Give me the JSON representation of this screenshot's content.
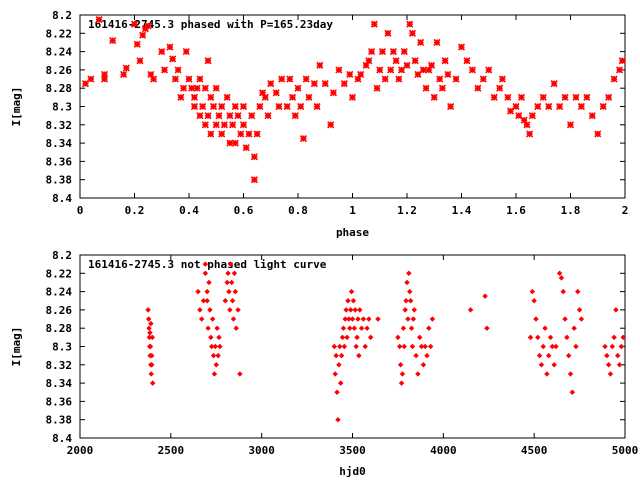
{
  "chart_data": [
    {
      "type": "scatter",
      "title": "161416-2745.3 phased with P=165.23day",
      "xlabel": "phase",
      "ylabel": "I[mag]",
      "xlim": [
        0,
        2
      ],
      "ylim": [
        8.2,
        8.4
      ],
      "y_inverted": true,
      "x_ticks": [
        0,
        0.2,
        0.4,
        0.6,
        0.8,
        1,
        1.2,
        1.4,
        1.6,
        1.8,
        2
      ],
      "x_tick_labels": [
        "0",
        "0.2",
        "0.4",
        "0.6",
        "0.8",
        "1",
        "1.2",
        "1.4",
        "1.6",
        "1.8",
        "2"
      ],
      "y_ticks": [
        8.2,
        8.22,
        8.24,
        8.26,
        8.28,
        8.3,
        8.32,
        8.34,
        8.36,
        8.38,
        8.4
      ],
      "y_tick_labels": [
        "8.2",
        "8.22",
        "8.24",
        "8.26",
        "8.28",
        "8.3",
        "8.32",
        "8.34",
        "8.36",
        "8.38",
        "8.4"
      ],
      "marker_color": "#ff0000",
      "marker": "star",
      "points": [
        [
          0.02,
          8.275
        ],
        [
          0.04,
          8.27
        ],
        [
          0.07,
          8.205
        ],
        [
          0.09,
          8.27
        ],
        [
          0.09,
          8.265
        ],
        [
          0.12,
          8.228
        ],
        [
          0.16,
          8.265
        ],
        [
          0.17,
          8.258
        ],
        [
          0.2,
          8.21
        ],
        [
          0.21,
          8.232
        ],
        [
          0.22,
          8.25
        ],
        [
          0.23,
          8.222
        ],
        [
          0.24,
          8.215
        ],
        [
          0.25,
          8.212
        ],
        [
          0.26,
          8.265
        ],
        [
          0.27,
          8.27
        ],
        [
          0.3,
          8.24
        ],
        [
          0.31,
          8.26
        ],
        [
          0.33,
          8.235
        ],
        [
          0.34,
          8.248
        ],
        [
          0.35,
          8.27
        ],
        [
          0.36,
          8.26
        ],
        [
          0.37,
          8.29
        ],
        [
          0.38,
          8.28
        ],
        [
          0.39,
          8.24
        ],
        [
          0.4,
          8.27
        ],
        [
          0.41,
          8.28
        ],
        [
          0.42,
          8.29
        ],
        [
          0.42,
          8.3
        ],
        [
          0.43,
          8.28
        ],
        [
          0.44,
          8.31
        ],
        [
          0.44,
          8.27
        ],
        [
          0.45,
          8.3
        ],
        [
          0.46,
          8.32
        ],
        [
          0.46,
          8.28
        ],
        [
          0.47,
          8.25
        ],
        [
          0.47,
          8.31
        ],
        [
          0.48,
          8.29
        ],
        [
          0.48,
          8.33
        ],
        [
          0.49,
          8.3
        ],
        [
          0.5,
          8.32
        ],
        [
          0.5,
          8.28
        ],
        [
          0.51,
          8.31
        ],
        [
          0.52,
          8.3
        ],
        [
          0.52,
          8.33
        ],
        [
          0.53,
          8.32
        ],
        [
          0.54,
          8.29
        ],
        [
          0.55,
          8.31
        ],
        [
          0.55,
          8.34
        ],
        [
          0.56,
          8.32
        ],
        [
          0.57,
          8.3
        ],
        [
          0.57,
          8.34
        ],
        [
          0.58,
          8.31
        ],
        [
          0.59,
          8.33
        ],
        [
          0.6,
          8.32
        ],
        [
          0.6,
          8.3
        ],
        [
          0.61,
          8.345
        ],
        [
          0.62,
          8.33
        ],
        [
          0.63,
          8.31
        ],
        [
          0.64,
          8.355
        ],
        [
          0.64,
          8.38
        ],
        [
          0.65,
          8.33
        ],
        [
          0.66,
          8.3
        ],
        [
          0.67,
          8.285
        ],
        [
          0.68,
          8.29
        ],
        [
          0.69,
          8.31
        ],
        [
          0.7,
          8.275
        ],
        [
          0.72,
          8.285
        ],
        [
          0.73,
          8.3
        ],
        [
          0.74,
          8.27
        ],
        [
          0.76,
          8.3
        ],
        [
          0.77,
          8.27
        ],
        [
          0.78,
          8.29
        ],
        [
          0.79,
          8.31
        ],
        [
          0.8,
          8.28
        ],
        [
          0.81,
          8.3
        ],
        [
          0.82,
          8.335
        ],
        [
          0.83,
          8.27
        ],
        [
          0.84,
          8.29
        ],
        [
          0.86,
          8.275
        ],
        [
          0.87,
          8.3
        ],
        [
          0.88,
          8.255
        ],
        [
          0.9,
          8.275
        ],
        [
          0.92,
          8.32
        ],
        [
          0.93,
          8.285
        ],
        [
          0.95,
          8.26
        ],
        [
          0.97,
          8.275
        ],
        [
          0.99,
          8.265
        ],
        [
          1.0,
          8.29
        ],
        [
          1.02,
          8.27
        ],
        [
          1.03,
          8.265
        ],
        [
          1.05,
          8.255
        ],
        [
          1.06,
          8.25
        ],
        [
          1.07,
          8.24
        ],
        [
          1.08,
          8.21
        ],
        [
          1.09,
          8.28
        ],
        [
          1.1,
          8.26
        ],
        [
          1.11,
          8.24
        ],
        [
          1.12,
          8.27
        ],
        [
          1.13,
          8.22
        ],
        [
          1.14,
          8.26
        ],
        [
          1.15,
          8.24
        ],
        [
          1.16,
          8.25
        ],
        [
          1.17,
          8.27
        ],
        [
          1.18,
          8.26
        ],
        [
          1.19,
          8.24
        ],
        [
          1.2,
          8.255
        ],
        [
          1.21,
          8.21
        ],
        [
          1.22,
          8.22
        ],
        [
          1.23,
          8.25
        ],
        [
          1.24,
          8.265
        ],
        [
          1.25,
          8.23
        ],
        [
          1.26,
          8.26
        ],
        [
          1.27,
          8.28
        ],
        [
          1.28,
          8.26
        ],
        [
          1.29,
          8.255
        ],
        [
          1.3,
          8.29
        ],
        [
          1.31,
          8.23
        ],
        [
          1.32,
          8.27
        ],
        [
          1.33,
          8.28
        ],
        [
          1.34,
          8.25
        ],
        [
          1.35,
          8.265
        ],
        [
          1.36,
          8.3
        ],
        [
          1.38,
          8.27
        ],
        [
          1.4,
          8.235
        ],
        [
          1.42,
          8.25
        ],
        [
          1.44,
          8.26
        ],
        [
          1.46,
          8.28
        ],
        [
          1.48,
          8.27
        ],
        [
          1.5,
          8.26
        ],
        [
          1.52,
          8.29
        ],
        [
          1.54,
          8.28
        ],
        [
          1.55,
          8.27
        ],
        [
          1.57,
          8.29
        ],
        [
          1.58,
          8.305
        ],
        [
          1.6,
          8.3
        ],
        [
          1.61,
          8.31
        ],
        [
          1.62,
          8.29
        ],
        [
          1.63,
          8.315
        ],
        [
          1.64,
          8.32
        ],
        [
          1.65,
          8.33
        ],
        [
          1.66,
          8.31
        ],
        [
          1.68,
          8.3
        ],
        [
          1.7,
          8.29
        ],
        [
          1.72,
          8.3
        ],
        [
          1.74,
          8.275
        ],
        [
          1.76,
          8.3
        ],
        [
          1.78,
          8.29
        ],
        [
          1.8,
          8.32
        ],
        [
          1.82,
          8.29
        ],
        [
          1.84,
          8.3
        ],
        [
          1.86,
          8.29
        ],
        [
          1.88,
          8.31
        ],
        [
          1.9,
          8.33
        ],
        [
          1.92,
          8.3
        ],
        [
          1.94,
          8.29
        ],
        [
          1.96,
          8.27
        ],
        [
          1.98,
          8.26
        ],
        [
          1.99,
          8.25
        ]
      ]
    },
    {
      "type": "scatter",
      "title": "161416-2745.3 not phased light curve",
      "xlabel": "hjd0",
      "ylabel": "I[mag]",
      "xlim": [
        2000,
        5000
      ],
      "ylim": [
        8.2,
        8.4
      ],
      "y_inverted": true,
      "x_ticks": [
        2000,
        2500,
        3000,
        3500,
        4000,
        4500,
        5000
      ],
      "x_tick_labels": [
        "2000",
        "2500",
        "3000",
        "3500",
        "4000",
        "4500",
        "5000"
      ],
      "y_ticks": [
        8.2,
        8.22,
        8.24,
        8.26,
        8.28,
        8.3,
        8.32,
        8.34,
        8.36,
        8.38,
        8.4
      ],
      "y_tick_labels": [
        "8.2",
        "8.22",
        "8.24",
        "8.26",
        "8.28",
        "8.3",
        "8.32",
        "8.34",
        "8.36",
        "8.38",
        "8.4"
      ],
      "marker_color": "#ff0000",
      "marker": "diamond",
      "points": [
        [
          2375,
          8.26
        ],
        [
          2378,
          8.27
        ],
        [
          2380,
          8.28
        ],
        [
          2382,
          8.29
        ],
        [
          2384,
          8.3
        ],
        [
          2386,
          8.31
        ],
        [
          2388,
          8.3
        ],
        [
          2390,
          8.32
        ],
        [
          2392,
          8.33
        ],
        [
          2395,
          8.31
        ],
        [
          2398,
          8.29
        ],
        [
          2400,
          8.34
        ],
        [
          2390,
          8.275
        ],
        [
          2385,
          8.285
        ],
        [
          2395,
          8.32
        ],
        [
          2650,
          8.24
        ],
        [
          2660,
          8.26
        ],
        [
          2670,
          8.27
        ],
        [
          2680,
          8.25
        ],
        [
          2690,
          8.22
        ],
        [
          2700,
          8.24
        ],
        [
          2705,
          8.28
        ],
        [
          2710,
          8.23
        ],
        [
          2715,
          8.26
        ],
        [
          2720,
          8.29
        ],
        [
          2725,
          8.3
        ],
        [
          2730,
          8.27
        ],
        [
          2735,
          8.31
        ],
        [
          2740,
          8.33
        ],
        [
          2745,
          8.3
        ],
        [
          2750,
          8.32
        ],
        [
          2755,
          8.28
        ],
        [
          2760,
          8.31
        ],
        [
          2765,
          8.29
        ],
        [
          2770,
          8.3
        ],
        [
          2690,
          8.21
        ],
        [
          2700,
          8.25
        ],
        [
          2800,
          8.25
        ],
        [
          2810,
          8.23
        ],
        [
          2815,
          8.22
        ],
        [
          2820,
          8.24
        ],
        [
          2825,
          8.26
        ],
        [
          2830,
          8.21
        ],
        [
          2835,
          8.23
        ],
        [
          2840,
          8.25
        ],
        [
          2845,
          8.27
        ],
        [
          2850,
          8.22
        ],
        [
          2855,
          8.24
        ],
        [
          2860,
          8.28
        ],
        [
          2870,
          8.26
        ],
        [
          2880,
          8.33
        ],
        [
          3400,
          8.3
        ],
        [
          3405,
          8.33
        ],
        [
          3410,
          8.31
        ],
        [
          3415,
          8.35
        ],
        [
          3420,
          8.38
        ],
        [
          3425,
          8.32
        ],
        [
          3430,
          8.3
        ],
        [
          3435,
          8.34
        ],
        [
          3440,
          8.31
        ],
        [
          3445,
          8.29
        ],
        [
          3450,
          8.28
        ],
        [
          3455,
          8.3
        ],
        [
          3460,
          8.27
        ],
        [
          3465,
          8.26
        ],
        [
          3470,
          8.29
        ],
        [
          3475,
          8.25
        ],
        [
          3480,
          8.27
        ],
        [
          3485,
          8.28
        ],
        [
          3490,
          8.26
        ],
        [
          3495,
          8.24
        ],
        [
          3500,
          8.27
        ],
        [
          3505,
          8.25
        ],
        [
          3510,
          8.28
        ],
        [
          3515,
          8.26
        ],
        [
          3520,
          8.3
        ],
        [
          3525,
          8.29
        ],
        [
          3530,
          8.27
        ],
        [
          3535,
          8.31
        ],
        [
          3540,
          8.26
        ],
        [
          3550,
          8.28
        ],
        [
          3560,
          8.27
        ],
        [
          3570,
          8.3
        ],
        [
          3580,
          8.28
        ],
        [
          3590,
          8.27
        ],
        [
          3600,
          8.29
        ],
        [
          3640,
          8.27
        ],
        [
          3750,
          8.29
        ],
        [
          3760,
          8.3
        ],
        [
          3765,
          8.32
        ],
        [
          3770,
          8.34
        ],
        [
          3775,
          8.33
        ],
        [
          3780,
          8.28
        ],
        [
          3785,
          8.3
        ],
        [
          3790,
          8.26
        ],
        [
          3795,
          8.25
        ],
        [
          3800,
          8.23
        ],
        [
          3805,
          8.27
        ],
        [
          3810,
          8.22
        ],
        [
          3815,
          8.24
        ],
        [
          3820,
          8.25
        ],
        [
          3825,
          8.28
        ],
        [
          3830,
          8.3
        ],
        [
          3835,
          8.27
        ],
        [
          3840,
          8.26
        ],
        [
          3850,
          8.31
        ],
        [
          3860,
          8.33
        ],
        [
          3870,
          8.29
        ],
        [
          3880,
          8.3
        ],
        [
          3890,
          8.32
        ],
        [
          3900,
          8.3
        ],
        [
          3910,
          8.31
        ],
        [
          3920,
          8.28
        ],
        [
          3930,
          8.3
        ],
        [
          3940,
          8.27
        ],
        [
          4150,
          8.26
        ],
        [
          4230,
          8.245
        ],
        [
          4240,
          8.28
        ],
        [
          4480,
          8.29
        ],
        [
          4490,
          8.24
        ],
        [
          4500,
          8.25
        ],
        [
          4510,
          8.27
        ],
        [
          4520,
          8.29
        ],
        [
          4530,
          8.31
        ],
        [
          4540,
          8.32
        ],
        [
          4550,
          8.3
        ],
        [
          4560,
          8.28
        ],
        [
          4570,
          8.33
        ],
        [
          4580,
          8.31
        ],
        [
          4590,
          8.29
        ],
        [
          4600,
          8.3
        ],
        [
          4610,
          8.32
        ],
        [
          4620,
          8.3
        ],
        [
          4640,
          8.22
        ],
        [
          4650,
          8.225
        ],
        [
          4660,
          8.24
        ],
        [
          4670,
          8.27
        ],
        [
          4680,
          8.29
        ],
        [
          4690,
          8.31
        ],
        [
          4700,
          8.33
        ],
        [
          4710,
          8.35
        ],
        [
          4720,
          8.28
        ],
        [
          4730,
          8.3
        ],
        [
          4740,
          8.24
        ],
        [
          4750,
          8.26
        ],
        [
          4760,
          8.27
        ],
        [
          4890,
          8.3
        ],
        [
          4900,
          8.31
        ],
        [
          4910,
          8.32
        ],
        [
          4920,
          8.33
        ],
        [
          4930,
          8.3
        ],
        [
          4940,
          8.29
        ],
        [
          4950,
          8.26
        ],
        [
          4960,
          8.31
        ],
        [
          4970,
          8.32
        ],
        [
          4980,
          8.3
        ],
        [
          4990,
          8.29
        ]
      ]
    }
  ]
}
